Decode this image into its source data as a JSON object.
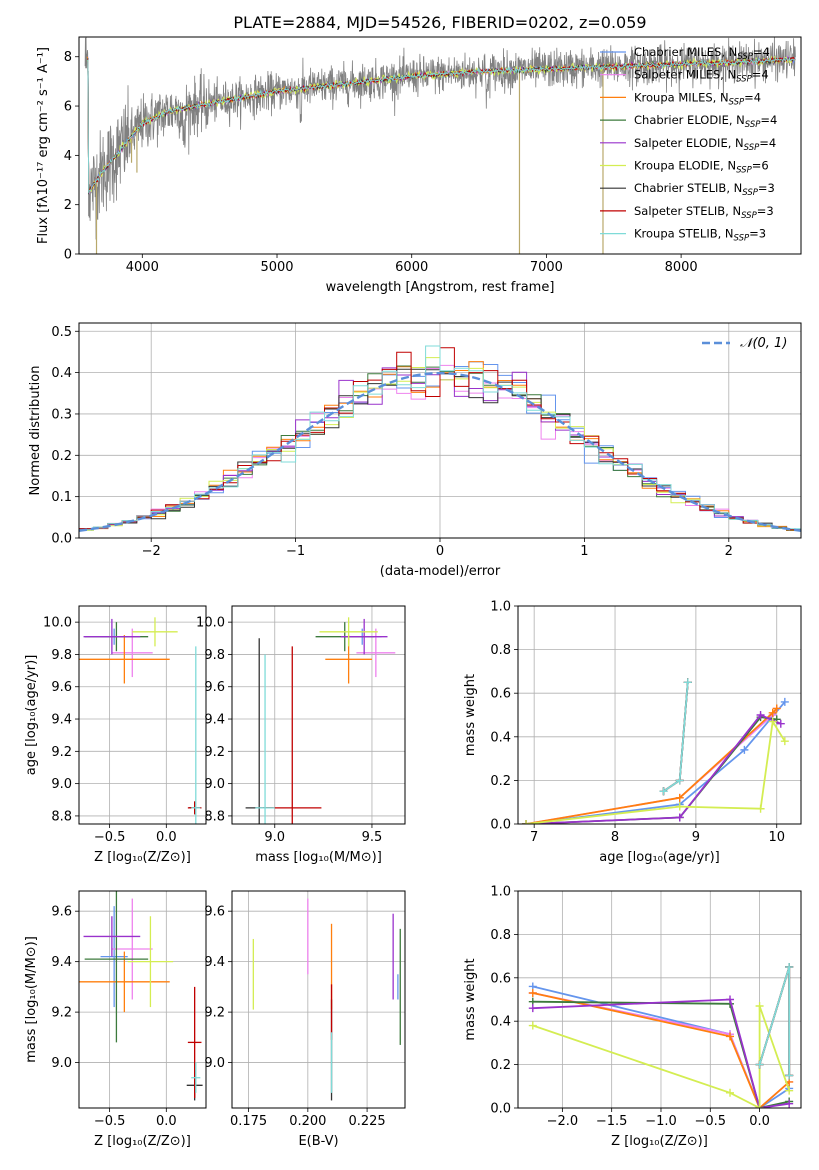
{
  "figure_title": "PLATE=2884, MJD=54526, FIBERID=0202, z=0.059",
  "colors": {
    "chabrier_miles": "#6495ed",
    "salpeter_miles": "#ee82ee",
    "kroupa_miles": "#ff7f0e",
    "chabrier_elodie": "#3c7a3c",
    "salpeter_elodie": "#9932cc",
    "kroupa_elodie": "#d4ed52",
    "chabrier_stelib": "#333333",
    "salpeter_stelib": "#c00000",
    "kroupa_stelib": "#7fdbd8",
    "data": "#808080",
    "normal_curve": "#5b8fd9",
    "grid": "#b0b0b0"
  },
  "chart_data": [
    {
      "id": "spectrum",
      "type": "line",
      "title": "PLATE=2884, MJD=54526, FIBERID=0202, z=0.059",
      "xlabel": "wavelength [Angstrom, rest frame]",
      "ylabel": "Flux [fλ10⁻¹⁷ erg cm⁻² s⁻¹ A⁻¹]",
      "xlim": [
        3530,
        8890
      ],
      "ylim": [
        0,
        8.8
      ],
      "xticks": [
        4000,
        5000,
        6000,
        7000,
        8000
      ],
      "yticks": [
        0,
        2,
        4,
        6,
        8
      ],
      "grid": false,
      "legend_position": "top-right",
      "legend": [
        {
          "label": "Chabrier MILES, N",
          "sub": "SSP",
          "tail": "=4",
          "color": "#6495ed"
        },
        {
          "label": "Salpeter MILES, N",
          "sub": "SSP",
          "tail": "=4",
          "color": "#ee82ee"
        },
        {
          "label": "Kroupa MILES, N",
          "sub": "SSP",
          "tail": "=4",
          "color": "#ff7f0e"
        },
        {
          "label": "Chabrier ELODIE, N",
          "sub": "SSP",
          "tail": "=4",
          "color": "#3c7a3c"
        },
        {
          "label": "Salpeter ELODIE, N",
          "sub": "SSP",
          "tail": "=4",
          "color": "#9932cc"
        },
        {
          "label": "Kroupa ELODIE, N",
          "sub": "SSP",
          "tail": "=6",
          "color": "#d4ed52"
        },
        {
          "label": "Chabrier STELIB, N",
          "sub": "SSP",
          "tail": "=3",
          "color": "#333333"
        },
        {
          "label": "Salpeter STELIB, N",
          "sub": "SSP",
          "tail": "=3",
          "color": "#c00000"
        },
        {
          "label": "Kroupa STELIB, N",
          "sub": "SSP",
          "tail": "=3",
          "color": "#7fdbd8"
        }
      ],
      "continuum": [
        [
          3600,
          2.5
        ],
        [
          3700,
          3.3
        ],
        [
          3850,
          4.3
        ],
        [
          4000,
          5.3
        ],
        [
          4200,
          5.8
        ],
        [
          4500,
          6.1
        ],
        [
          5000,
          6.6
        ],
        [
          5500,
          6.9
        ],
        [
          6000,
          7.2
        ],
        [
          6500,
          7.4
        ],
        [
          7000,
          7.5
        ],
        [
          7500,
          7.6
        ],
        [
          8000,
          7.7
        ],
        [
          8500,
          7.8
        ],
        [
          8850,
          7.9
        ]
      ]
    },
    {
      "id": "residuals",
      "type": "step-histogram",
      "xlabel": "(data-model)/error",
      "ylabel": "Normed distribution",
      "xlim": [
        -2.5,
        2.5
      ],
      "ylim": [
        0,
        0.52
      ],
      "xticks": [
        -2,
        -1,
        0,
        1,
        2
      ],
      "yticks": [
        0.0,
        0.1,
        0.2,
        0.3,
        0.4,
        0.5
      ],
      "grid": true,
      "legend_position": "top-right",
      "legend_label": "𝒩(0, 1)",
      "bin_width": 0.1
    },
    {
      "id": "age_vs_metallicity",
      "type": "errorbar",
      "xlabel": "Z [log₁₀(Z/Z⊙)]",
      "ylabel": "age  [log₁₀(age/yr)]",
      "xlim": [
        -0.77,
        0.35
      ],
      "ylim": [
        8.75,
        10.1
      ],
      "xticks": [
        -0.5,
        0.0
      ],
      "yticks": [
        8.8,
        9.0,
        9.2,
        9.4,
        9.6,
        9.8,
        10.0
      ],
      "grid": true,
      "points": [
        {
          "model": "chabrier_miles",
          "x": -0.46,
          "y": 9.91,
          "xerr": 0.12,
          "yerr": 0.05
        },
        {
          "model": "salpeter_miles",
          "x": -0.3,
          "y": 9.81,
          "xerr": 0.18,
          "yerr": 0.15
        },
        {
          "model": "kroupa_miles",
          "x": -0.37,
          "y": 9.77,
          "xerr": 0.4,
          "yerr": 0.15
        },
        {
          "model": "chabrier_elodie",
          "x": -0.44,
          "y": 9.91,
          "xerr": 0.28,
          "yerr": 0.09
        },
        {
          "model": "salpeter_elodie",
          "x": -0.48,
          "y": 9.91,
          "xerr": 0.25,
          "yerr": 0.11
        },
        {
          "model": "kroupa_elodie",
          "x": -0.1,
          "y": 9.94,
          "xerr": 0.2,
          "yerr": 0.09
        },
        {
          "model": "chabrier_stelib",
          "x": 0.25,
          "y": 8.85,
          "xerr": 0.05,
          "yerr": 0.04
        },
        {
          "model": "salpeter_stelib",
          "x": 0.25,
          "y": 8.85,
          "xerr": 0.06,
          "yerr": 0.04
        },
        {
          "model": "kroupa_stelib",
          "x": 0.26,
          "y": 8.85,
          "xerr": 0.04,
          "yerr": 1.0
        }
      ]
    },
    {
      "id": "age_vs_mass",
      "type": "errorbar",
      "xlabel": "mass [log₁₀(M/M⊙)]",
      "ylabel": "",
      "xlim": [
        8.78,
        9.67
      ],
      "ylim": [
        8.75,
        10.1
      ],
      "xticks": [
        9.0,
        9.5
      ],
      "yticks": [
        8.8,
        9.0,
        9.2,
        9.4,
        9.6,
        9.8,
        10.0
      ],
      "grid": true,
      "points": [
        {
          "model": "chabrier_miles",
          "x": 9.45,
          "y": 9.91,
          "xerr": 0.1,
          "yerr": 0.05
        },
        {
          "model": "salpeter_miles",
          "x": 9.52,
          "y": 9.81,
          "xerr": 0.1,
          "yerr": 0.15
        },
        {
          "model": "kroupa_miles",
          "x": 9.38,
          "y": 9.77,
          "xerr": 0.12,
          "yerr": 0.15
        },
        {
          "model": "chabrier_elodie",
          "x": 9.36,
          "y": 9.91,
          "xerr": 0.15,
          "yerr": 0.09
        },
        {
          "model": "salpeter_elodie",
          "x": 9.46,
          "y": 9.91,
          "xerr": 0.12,
          "yerr": 0.11
        },
        {
          "model": "kroupa_elodie",
          "x": 9.38,
          "y": 9.94,
          "xerr": 0.15,
          "yerr": 0.09
        },
        {
          "model": "chabrier_stelib",
          "x": 8.92,
          "y": 8.85,
          "xerr": 0.07,
          "yerr": 1.05
        },
        {
          "model": "salpeter_stelib",
          "x": 9.09,
          "y": 8.85,
          "xerr": 0.15,
          "yerr": 1.0
        },
        {
          "model": "kroupa_stelib",
          "x": 8.95,
          "y": 8.85,
          "xerr": 0.05,
          "yerr": 0.95
        }
      ]
    },
    {
      "id": "mass_weight_vs_age",
      "type": "line",
      "xlabel": "age  [log₁₀(age/yr)]",
      "ylabel": "mass weight",
      "xlim": [
        6.8,
        10.3
      ],
      "ylim": [
        0,
        1.0
      ],
      "xticks": [
        7,
        8,
        9,
        10
      ],
      "yticks": [
        0.0,
        0.2,
        0.4,
        0.6,
        0.8,
        1.0
      ],
      "grid": true,
      "series": [
        {
          "model": "chabrier_miles",
          "points": [
            [
              6.9,
              0.0
            ],
            [
              8.8,
              0.09
            ],
            [
              9.6,
              0.34
            ],
            [
              10.1,
              0.56
            ]
          ]
        },
        {
          "model": "salpeter_miles",
          "points": [
            [
              6.9,
              0.0
            ],
            [
              8.8,
              0.12
            ],
            [
              9.95,
              0.5
            ],
            [
              10.0,
              0.53
            ]
          ]
        },
        {
          "model": "kroupa_miles",
          "points": [
            [
              6.9,
              0.0
            ],
            [
              8.8,
              0.12
            ],
            [
              9.95,
              0.51
            ],
            [
              10.0,
              0.53
            ]
          ]
        },
        {
          "model": "chabrier_elodie",
          "points": [
            [
              6.9,
              0.0
            ],
            [
              8.8,
              0.03
            ],
            [
              9.8,
              0.49
            ],
            [
              10.0,
              0.48
            ]
          ]
        },
        {
          "model": "salpeter_elodie",
          "points": [
            [
              6.9,
              0.0
            ],
            [
              8.8,
              0.03
            ],
            [
              9.8,
              0.5
            ],
            [
              10.05,
              0.46
            ]
          ]
        },
        {
          "model": "kroupa_elodie",
          "points": [
            [
              6.9,
              0.0
            ],
            [
              8.8,
              0.08
            ],
            [
              9.8,
              0.07
            ],
            [
              9.95,
              0.47
            ],
            [
              10.1,
              0.38
            ]
          ]
        },
        {
          "model": "chabrier_stelib",
          "points": [
            [
              8.6,
              0.15
            ],
            [
              8.8,
              0.2
            ],
            [
              8.9,
              0.65
            ]
          ]
        },
        {
          "model": "salpeter_stelib",
          "points": [
            [
              8.6,
              0.15
            ],
            [
              8.8,
              0.2
            ],
            [
              8.9,
              0.65
            ]
          ]
        },
        {
          "model": "kroupa_stelib",
          "points": [
            [
              8.6,
              0.15
            ],
            [
              8.8,
              0.2
            ],
            [
              8.9,
              0.65
            ]
          ]
        }
      ]
    },
    {
      "id": "mass_vs_metallicity",
      "type": "errorbar",
      "xlabel": "Z [log₁₀(Z/Z⊙)]",
      "ylabel": "mass [log₁₀(M/M⊙)]",
      "xlim": [
        -0.77,
        0.35
      ],
      "ylim": [
        8.82,
        9.68
      ],
      "xticks": [
        -0.5,
        0.0
      ],
      "yticks": [
        9.0,
        9.2,
        9.4,
        9.6
      ],
      "grid": true,
      "points": [
        {
          "model": "chabrier_miles",
          "x": -0.46,
          "y": 9.42,
          "xerr": 0.12,
          "yerr": 0.2
        },
        {
          "model": "salpeter_miles",
          "x": -0.3,
          "y": 9.45,
          "xerr": 0.18,
          "yerr": 0.2
        },
        {
          "model": "kroupa_miles",
          "x": -0.37,
          "y": 9.32,
          "xerr": 0.4,
          "yerr": 0.12
        },
        {
          "model": "chabrier_elodie",
          "x": -0.44,
          "y": 9.41,
          "xerr": 0.28,
          "yerr": 0.33
        },
        {
          "model": "salpeter_elodie",
          "x": -0.48,
          "y": 9.5,
          "xerr": 0.25,
          "yerr": 0.08
        },
        {
          "model": "kroupa_elodie",
          "x": -0.14,
          "y": 9.4,
          "xerr": 0.2,
          "yerr": 0.18
        },
        {
          "model": "chabrier_stelib",
          "x": 0.25,
          "y": 8.91,
          "xerr": 0.07,
          "yerr": 0.06
        },
        {
          "model": "salpeter_stelib",
          "x": 0.25,
          "y": 9.08,
          "xerr": 0.06,
          "yerr": 0.22
        },
        {
          "model": "kroupa_stelib",
          "x": 0.26,
          "y": 8.94,
          "xerr": 0.04,
          "yerr": 0.06
        }
      ]
    },
    {
      "id": "mass_vs_ebv",
      "type": "errorbar",
      "xlabel": "E(B-V)",
      "ylabel": "",
      "xlim": [
        0.168,
        0.241
      ],
      "ylim": [
        8.82,
        9.68
      ],
      "xticks": [
        0.175,
        0.2,
        0.225
      ],
      "yticks": [
        9.0,
        9.2,
        9.4,
        9.6
      ],
      "grid": true,
      "points": [
        {
          "model": "chabrier_miles",
          "x": 0.238,
          "y": 9.3,
          "xerr": 0,
          "yerr": 0.05
        },
        {
          "model": "salpeter_miles",
          "x": 0.2,
          "y": 9.5,
          "xerr": 0,
          "yerr": 0.15
        },
        {
          "model": "kroupa_miles",
          "x": 0.21,
          "y": 9.38,
          "xerr": 0,
          "yerr": 0.17
        },
        {
          "model": "chabrier_elodie",
          "x": 0.239,
          "y": 9.3,
          "xerr": 0,
          "yerr": 0.23
        },
        {
          "model": "salpeter_elodie",
          "x": 0.236,
          "y": 9.42,
          "xerr": 0,
          "yerr": 0.17
        },
        {
          "model": "kroupa_elodie",
          "x": 0.177,
          "y": 9.35,
          "xerr": 0,
          "yerr": 0.14
        },
        {
          "model": "chabrier_stelib",
          "x": 0.21,
          "y": 9.05,
          "xerr": 0,
          "yerr": 0.2
        },
        {
          "model": "salpeter_stelib",
          "x": 0.21,
          "y": 9.2,
          "xerr": 0,
          "yerr": 0.11
        },
        {
          "model": "kroupa_stelib",
          "x": 0.21,
          "y": 9.0,
          "xerr": 0,
          "yerr": 0.12
        }
      ]
    },
    {
      "id": "mass_weight_vs_metallicity",
      "type": "line",
      "xlabel": "Z [log₁₀(Z/Z⊙)]",
      "ylabel": "mass weight",
      "xlim": [
        -2.45,
        0.42
      ],
      "ylim": [
        0,
        1.0
      ],
      "xticks": [
        -2.0,
        -1.5,
        -1.0,
        -0.5,
        0.0
      ],
      "yticks": [
        0.0,
        0.2,
        0.4,
        0.6,
        0.8,
        1.0
      ],
      "grid": true,
      "series": [
        {
          "model": "chabrier_miles",
          "points": [
            [
              -2.3,
              0.56
            ],
            [
              -0.3,
              0.34
            ],
            [
              0.0,
              0.0
            ],
            [
              0.3,
              0.09
            ]
          ]
        },
        {
          "model": "salpeter_miles",
          "points": [
            [
              -2.3,
              0.53
            ],
            [
              -0.3,
              0.34
            ],
            [
              0.0,
              0.0
            ],
            [
              0.3,
              0.12
            ]
          ]
        },
        {
          "model": "kroupa_miles",
          "points": [
            [
              -2.3,
              0.53
            ],
            [
              -0.3,
              0.33
            ],
            [
              0.0,
              0.0
            ],
            [
              0.3,
              0.12
            ]
          ]
        },
        {
          "model": "chabrier_elodie",
          "points": [
            [
              -2.3,
              0.49
            ],
            [
              -0.3,
              0.48
            ],
            [
              0.0,
              0.0
            ],
            [
              0.3,
              0.03
            ]
          ]
        },
        {
          "model": "salpeter_elodie",
          "points": [
            [
              -2.3,
              0.46
            ],
            [
              -0.3,
              0.5
            ],
            [
              0.0,
              0.0
            ],
            [
              0.3,
              0.02
            ]
          ]
        },
        {
          "model": "kroupa_elodie",
          "points": [
            [
              -2.3,
              0.38
            ],
            [
              -0.3,
              0.07
            ],
            [
              0.0,
              0.0
            ],
            [
              0.0,
              0.47
            ],
            [
              0.3,
              0.08
            ]
          ]
        },
        {
          "model": "chabrier_stelib",
          "points": [
            [
              0.0,
              0.2
            ],
            [
              0.3,
              0.65
            ],
            [
              0.3,
              0.15
            ]
          ]
        },
        {
          "model": "salpeter_stelib",
          "points": [
            [
              0.0,
              0.2
            ],
            [
              0.3,
              0.65
            ],
            [
              0.3,
              0.15
            ]
          ]
        },
        {
          "model": "kroupa_stelib",
          "points": [
            [
              0.0,
              0.2
            ],
            [
              0.3,
              0.65
            ],
            [
              0.3,
              0.15
            ]
          ]
        }
      ]
    }
  ]
}
